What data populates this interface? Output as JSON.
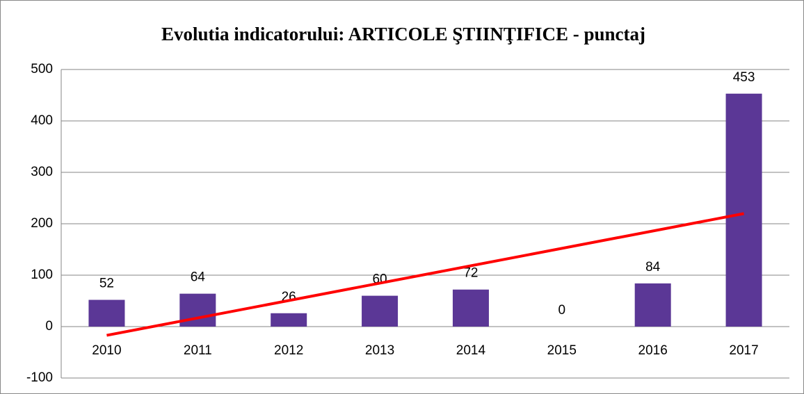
{
  "chart_data": {
    "type": "bar",
    "title": "Evolutia indicatorului: ARTICOLE ŞTIINŢIFICE - punctaj",
    "categories": [
      "2010",
      "2011",
      "2012",
      "2013",
      "2014",
      "2015",
      "2016",
      "2017"
    ],
    "values": [
      52,
      64,
      26,
      60,
      72,
      0,
      84,
      453
    ],
    "color": "#5b3796",
    "ylim": [
      -100,
      500
    ],
    "yticks": [
      -100,
      0,
      100,
      200,
      300,
      400,
      500
    ],
    "grid": true,
    "trendline": {
      "type": "linear",
      "color": "#ff0000"
    }
  }
}
